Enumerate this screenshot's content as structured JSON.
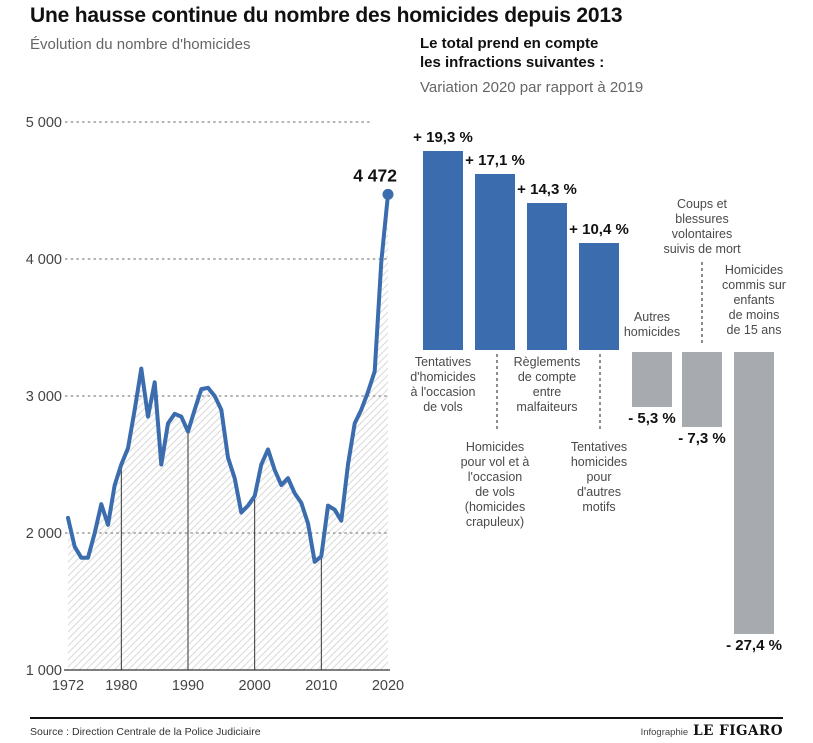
{
  "title": "Une hausse continue du nombre des homicides depuis 2013",
  "footer": {
    "source": "Source : Direction Centrale de la Police Judiciaire",
    "credit_prefix": "Infographie",
    "brand": "LE FIGARO"
  },
  "colors": {
    "blue": "#3a6cae",
    "gray_bar": "#a7aaae",
    "grid": "#888888",
    "hatch": "#d9d9d9",
    "axis_text": "#444444",
    "dark_text": "#111111"
  },
  "chart_data": [
    {
      "type": "line",
      "title": "Évolution du nombre d'homicides",
      "xlim": [
        1972,
        2020
      ],
      "ylim": [
        1000,
        5000
      ],
      "grid": "dashed-horizontal",
      "hatch_fill": true,
      "legend": "none",
      "x": [
        1972,
        1973,
        1974,
        1975,
        1976,
        1977,
        1978,
        1979,
        1980,
        1981,
        1982,
        1983,
        1984,
        1985,
        1986,
        1987,
        1988,
        1989,
        1990,
        1991,
        1992,
        1993,
        1994,
        1995,
        1996,
        1997,
        1998,
        1999,
        2000,
        2001,
        2002,
        2003,
        2004,
        2005,
        2006,
        2007,
        2008,
        2009,
        2010,
        2011,
        2012,
        2013,
        2014,
        2015,
        2016,
        2017,
        2018,
        2019,
        2020
      ],
      "values": [
        2110,
        1900,
        1820,
        1820,
        2000,
        2210,
        2060,
        2350,
        2500,
        2620,
        2900,
        3200,
        2850,
        3100,
        2500,
        2800,
        2870,
        2850,
        2740,
        2900,
        3050,
        3060,
        3000,
        2900,
        2550,
        2400,
        2150,
        2200,
        2270,
        2500,
        2610,
        2460,
        2350,
        2400,
        2290,
        2220,
        2070,
        1790,
        1830,
        2200,
        2170,
        2090,
        2500,
        2800,
        2900,
        3030,
        3180,
        3980,
        4472
      ],
      "end_label": "4 472",
      "end_value": 4472,
      "yticks": [
        {
          "label": "5 000",
          "value": 5000
        },
        {
          "label": "4 000",
          "value": 4000
        },
        {
          "label": "3 000",
          "value": 3000
        },
        {
          "label": "2 000",
          "value": 2000
        },
        {
          "label": "1 000",
          "value": 1000
        }
      ],
      "xticks": [
        {
          "label": "1972",
          "value": 1972
        },
        {
          "label": "1980",
          "value": 1980
        },
        {
          "label": "1990",
          "value": 1990
        },
        {
          "label": "2000",
          "value": 2000
        },
        {
          "label": "2010",
          "value": 2010
        },
        {
          "label": "2020",
          "value": 2020
        }
      ],
      "decade_lines": [
        1980,
        1990,
        2000,
        2010
      ]
    },
    {
      "type": "bar",
      "title_line1": "Le total prend en compte",
      "title_line2": "les infractions suivantes :",
      "subtitle": "Variation 2020 par rapport à 2019",
      "unit": "%",
      "bars": [
        {
          "label": "Tentatives d'homicides à l'occasion de vols",
          "label_lines": "Tentatives\nd'homicides\nà l'occasion\nde vols",
          "value": 19.3,
          "value_label": "+ 19,3 %"
        },
        {
          "label": "Homicides pour vol et à l'occasion de vols (homicides crapuleux)",
          "label_lines": "Homicides\npour vol et à\nl'occasion\nde vols\n(homicides\ncrapuleux)",
          "value": 17.1,
          "value_label": "+ 17,1 %"
        },
        {
          "label": "Règlements de compte entre malfaiteurs",
          "label_lines": "Règlements\nde compte\nentre\nmalfaiteurs",
          "value": 14.3,
          "value_label": "+ 14,3 %"
        },
        {
          "label": "Tentatives homicides pour d'autres motifs",
          "label_lines": "Tentatives\nhomicides\npour\nd'autres\nmotifs",
          "value": 10.4,
          "value_label": "+ 10,4 %"
        },
        {
          "label": "Autres homicides",
          "label_lines": "Autres\nhomicides",
          "value": -5.3,
          "value_label": "- 5,3 %"
        },
        {
          "label": "Coups et blessures volontaires suivis de mort",
          "label_lines": "Coups et\nblessures\nvolontaires\nsuivis de mort",
          "value": -7.3,
          "value_label": "- 7,3 %"
        },
        {
          "label": "Homicides commis sur enfants de moins de 15 ans",
          "label_lines": "Homicides\ncommis sur\nenfants\nde moins\nde 15 ans",
          "value": -27.4,
          "value_label": "- 27,4 %"
        }
      ]
    }
  ]
}
